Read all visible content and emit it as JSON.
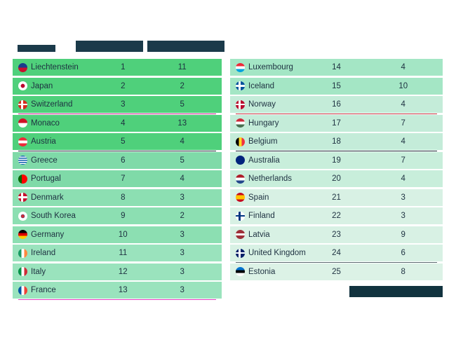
{
  "header": {
    "country": "",
    "col1": "",
    "col2": ""
  },
  "footnote": "",
  "colors": {
    "top": "#4ed07a",
    "mid": "#7fdaa8",
    "low": "#a5e6c4",
    "pale": "#c8eedb",
    "faint": "#dcf2e6",
    "magenta": "#e040c0",
    "dark": "#1b2b35",
    "red": "#c0303a"
  },
  "left": [
    {
      "country": "Liechtenstein",
      "rank": "1",
      "value": "11",
      "flag": "liechtenstein-flag-icon",
      "bg": "#4fd07b"
    },
    {
      "country": "Japan",
      "rank": "2",
      "value": "2",
      "flag": "japan-flag-icon",
      "bg": "#4fd07b"
    },
    {
      "country": "Switzerland",
      "rank": "3",
      "value": "5",
      "flag": "switzerland-flag-icon",
      "bg": "#4fd07b",
      "sep": "#c0208a"
    },
    {
      "country": "Monaco",
      "rank": "4",
      "value": "13",
      "flag": "monaco-flag-icon",
      "bg": "#4fd07b"
    },
    {
      "country": "Austria",
      "rank": "5",
      "value": "4",
      "flag": "austria-flag-icon",
      "bg": "#4fd07b",
      "sep": "#1b2b35"
    },
    {
      "country": "Greece",
      "rank": "6",
      "value": "5",
      "flag": "greece-flag-icon",
      "bg": "#7fdaa8"
    },
    {
      "country": "Portugal",
      "rank": "7",
      "value": "4",
      "flag": "portugal-flag-icon",
      "bg": "#7fdaa8"
    },
    {
      "country": "Denmark",
      "rank": "8",
      "value": "3",
      "flag": "denmark-flag-icon",
      "bg": "#8cdfb2"
    },
    {
      "country": "South Korea",
      "rank": "9",
      "value": "2",
      "flag": "south-korea-flag-icon",
      "bg": "#8cdfb2"
    },
    {
      "country": "Germany",
      "rank": "10",
      "value": "3",
      "flag": "germany-flag-icon",
      "bg": "#8cdfb2"
    },
    {
      "country": "Ireland",
      "rank": "11",
      "value": "3",
      "flag": "ireland-flag-icon",
      "bg": "#9ae3bd"
    },
    {
      "country": "Italy",
      "rank": "12",
      "value": "3",
      "flag": "italy-flag-icon",
      "bg": "#9ae3bd"
    },
    {
      "country": "France",
      "rank": "13",
      "value": "3",
      "flag": "france-flag-icon",
      "bg": "#9ae3bd",
      "sep": "#e040c0"
    }
  ],
  "right": [
    {
      "country": "Luxembourg",
      "rank": "14",
      "value": "4",
      "flag": "luxembourg-flag-icon",
      "bg": "#a4e6c5"
    },
    {
      "country": "Iceland",
      "rank": "15",
      "value": "10",
      "flag": "iceland-flag-icon",
      "bg": "#a4e6c5"
    },
    {
      "country": "Norway",
      "rank": "16",
      "value": "4",
      "flag": "norway-flag-icon",
      "bg": "#c4ecd9",
      "sep": "#c0303a"
    },
    {
      "country": "Hungary",
      "rank": "17",
      "value": "7",
      "flag": "hungary-flag-icon",
      "bg": "#c4ecd9"
    },
    {
      "country": "Belgium",
      "rank": "18",
      "value": "4",
      "flag": "belgium-flag-icon",
      "bg": "#c4ecd9",
      "sep": "#1b2b35"
    },
    {
      "country": "Australia",
      "rank": "19",
      "value": "7",
      "flag": "australia-flag-icon",
      "bg": "#c8eedb"
    },
    {
      "country": "Netherlands",
      "rank": "20",
      "value": "4",
      "flag": "netherlands-flag-icon",
      "bg": "#c8eedb"
    },
    {
      "country": "Spain",
      "rank": "21",
      "value": "3",
      "flag": "spain-flag-icon",
      "bg": "#d8f1e4"
    },
    {
      "country": "Finland",
      "rank": "22",
      "value": "3",
      "flag": "finland-flag-icon",
      "bg": "#d8f1e4"
    },
    {
      "country": "Latvia",
      "rank": "23",
      "value": "9",
      "flag": "latvia-flag-icon",
      "bg": "#d8f1e4"
    },
    {
      "country": "United Kingdom",
      "rank": "24",
      "value": "6",
      "flag": "united-kingdom-flag-icon",
      "bg": "#d8f1e4",
      "sep": "#5a6a70"
    },
    {
      "country": "Estonia",
      "rank": "25",
      "value": "8",
      "flag": "estonia-flag-icon",
      "bg": "#dcf2e6"
    }
  ]
}
